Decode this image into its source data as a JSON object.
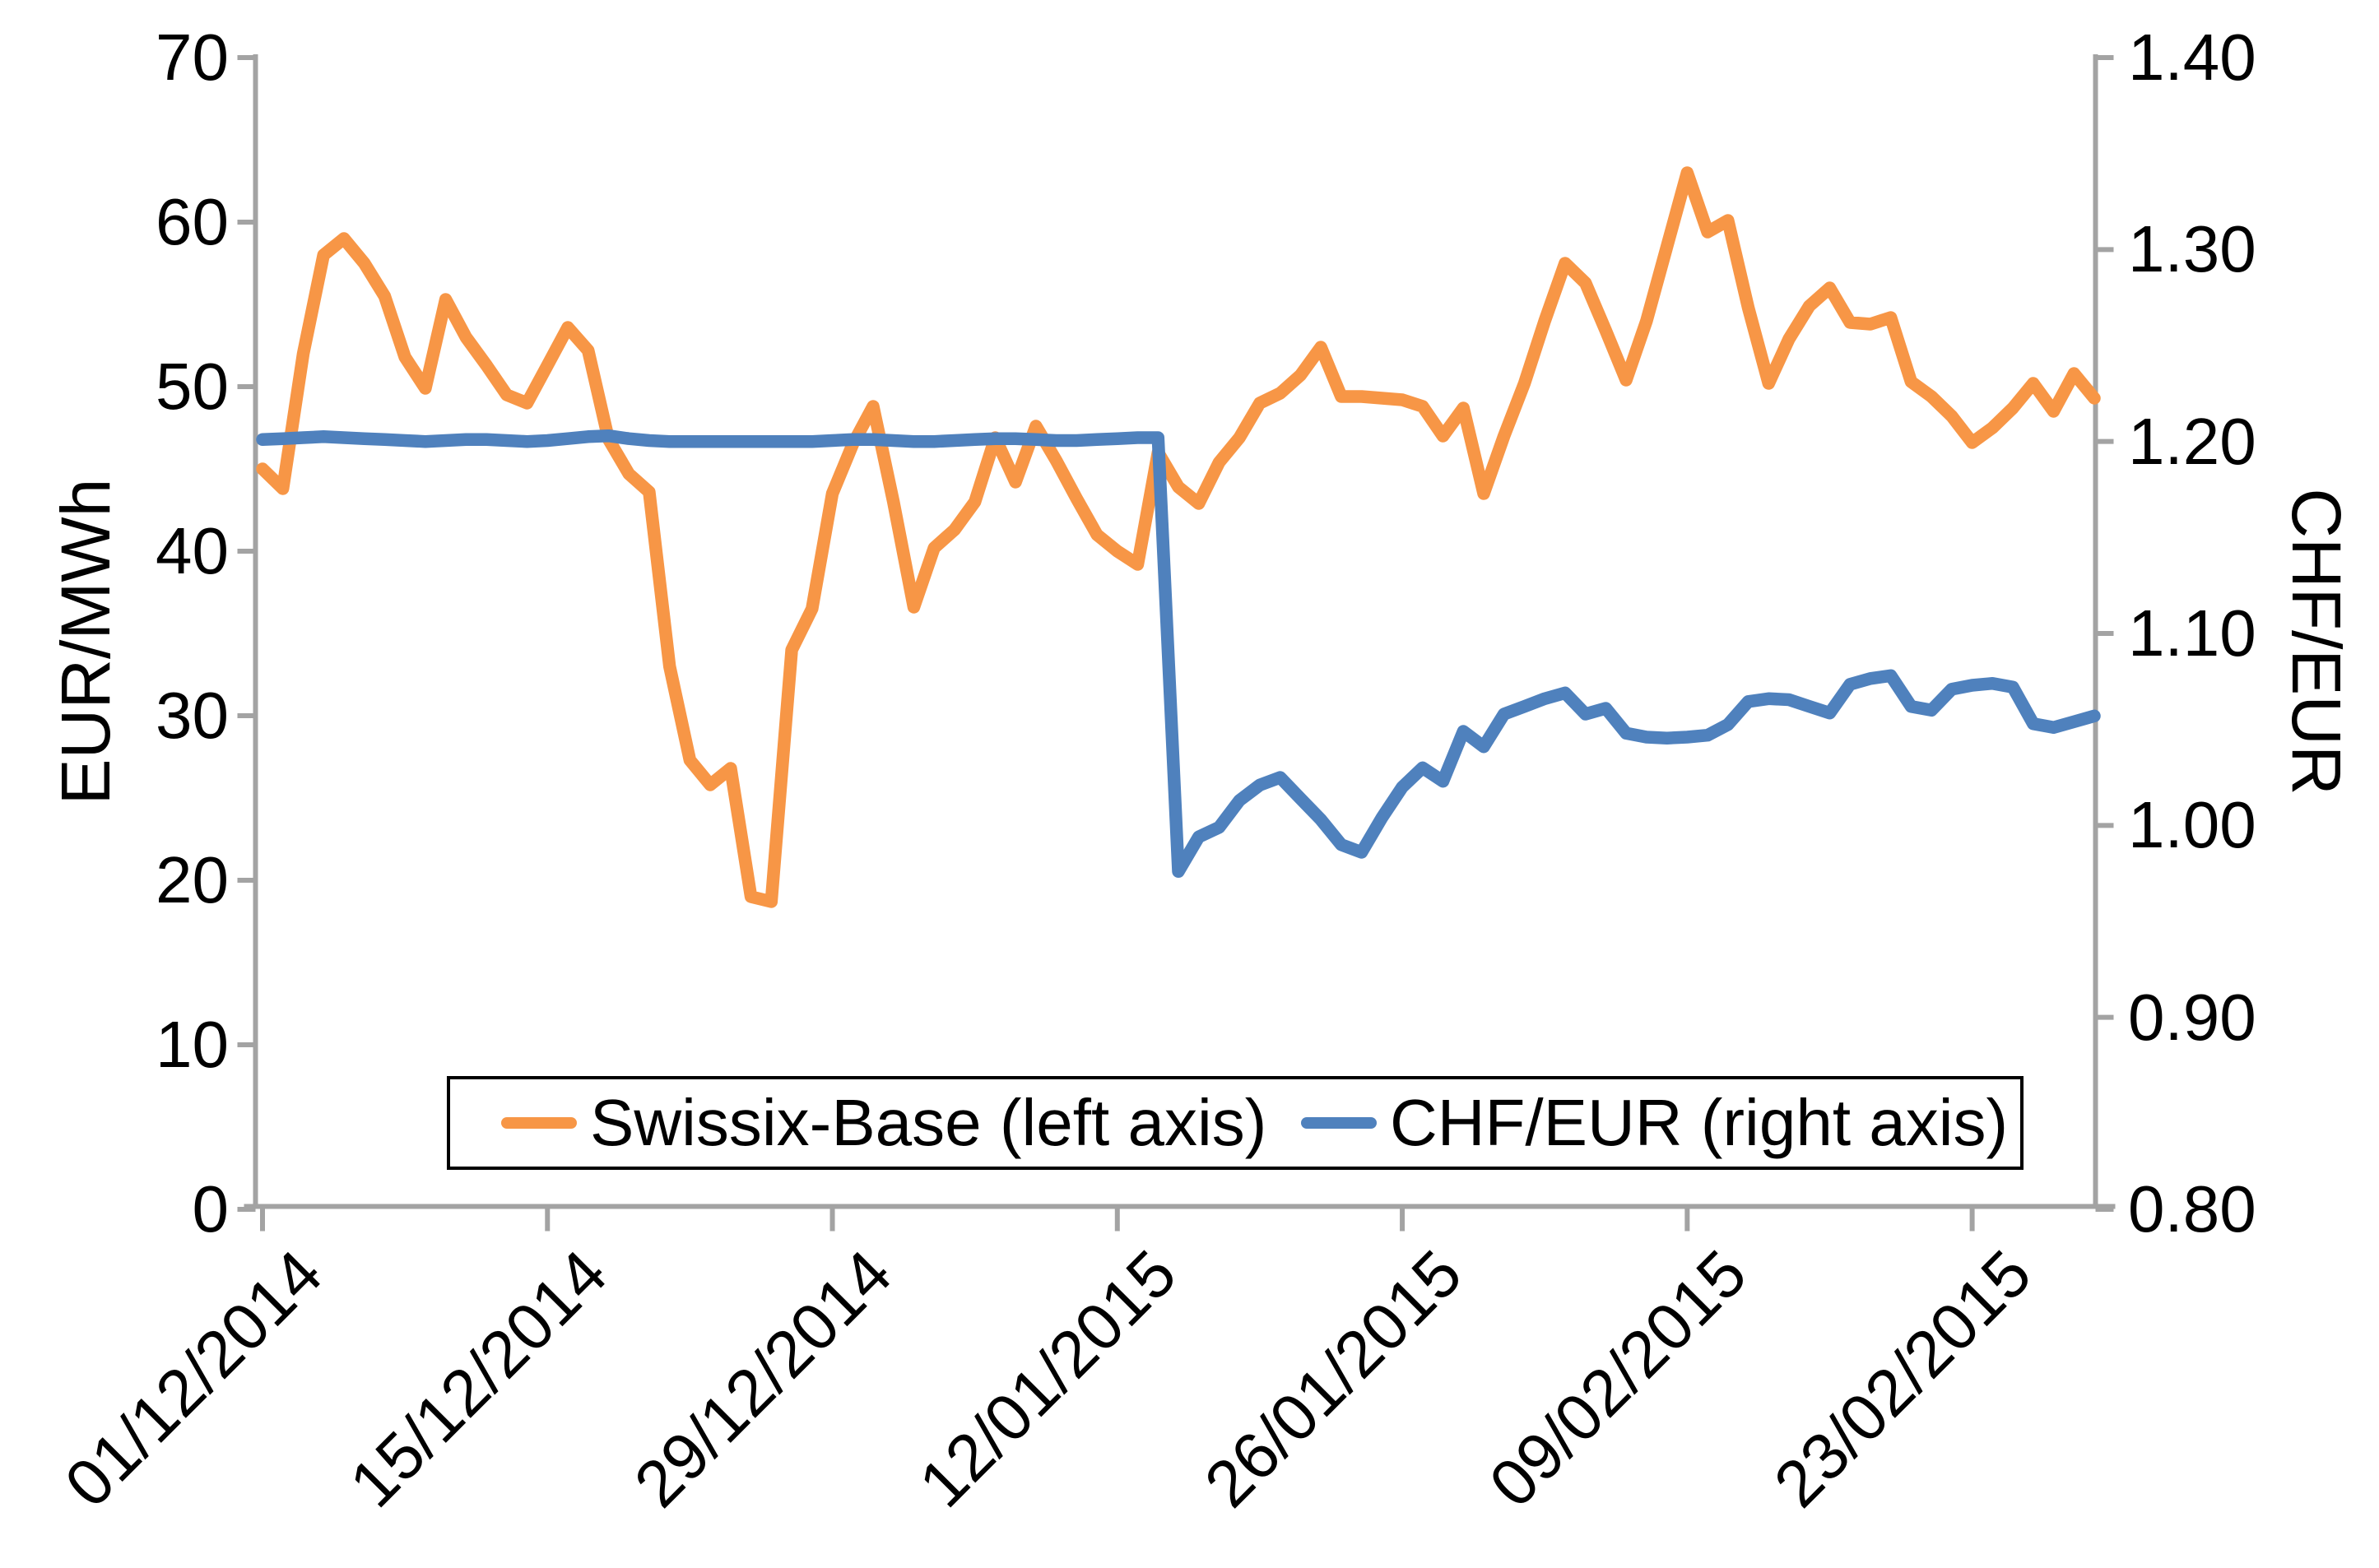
{
  "chart_data": {
    "type": "line",
    "title": "",
    "x_tick_labels": [
      "01/12/2014",
      "15/12/2014",
      "29/12/2014",
      "12/01/2015",
      "26/01/2015",
      "09/02/2015",
      "23/02/2015"
    ],
    "dates": [
      "01/12/2014",
      "02/12/2014",
      "03/12/2014",
      "04/12/2014",
      "05/12/2014",
      "06/12/2014",
      "07/12/2014",
      "08/12/2014",
      "09/12/2014",
      "10/12/2014",
      "11/12/2014",
      "12/12/2014",
      "13/12/2014",
      "14/12/2014",
      "15/12/2014",
      "16/12/2014",
      "17/12/2014",
      "18/12/2014",
      "19/12/2014",
      "20/12/2014",
      "21/12/2014",
      "22/12/2014",
      "23/12/2014",
      "24/12/2014",
      "25/12/2014",
      "26/12/2014",
      "27/12/2014",
      "28/12/2014",
      "29/12/2014",
      "30/12/2014",
      "31/12/2014",
      "01/01/2015",
      "02/01/2015",
      "03/01/2015",
      "04/01/2015",
      "05/01/2015",
      "06/01/2015",
      "07/01/2015",
      "08/01/2015",
      "09/01/2015",
      "10/01/2015",
      "11/01/2015",
      "12/01/2015",
      "13/01/2015",
      "14/01/2015",
      "15/01/2015",
      "16/01/2015",
      "17/01/2015",
      "18/01/2015",
      "19/01/2015",
      "20/01/2015",
      "21/01/2015",
      "22/01/2015",
      "23/01/2015",
      "24/01/2015",
      "25/01/2015",
      "26/01/2015",
      "27/01/2015",
      "28/01/2015",
      "29/01/2015",
      "30/01/2015",
      "31/01/2015",
      "01/02/2015",
      "02/02/2015",
      "03/02/2015",
      "04/02/2015",
      "05/02/2015",
      "06/02/2015",
      "07/02/2015",
      "08/02/2015",
      "09/02/2015",
      "10/02/2015",
      "11/02/2015",
      "12/02/2015",
      "13/02/2015",
      "14/02/2015",
      "15/02/2015",
      "16/02/2015",
      "17/02/2015",
      "18/02/2015",
      "19/02/2015",
      "20/02/2015",
      "21/02/2015",
      "22/02/2015",
      "23/02/2015",
      "24/02/2015",
      "25/02/2015",
      "26/02/2015",
      "27/02/2015",
      "28/02/2015",
      "01/03/2015"
    ],
    "series": [
      {
        "name": "Swissix-Base (left axis)",
        "axis": "left",
        "color": "#F79646",
        "values": [
          45.0,
          43.8,
          52.0,
          58.0,
          59.0,
          57.5,
          55.5,
          51.8,
          49.9,
          55.3,
          53.0,
          51.3,
          49.5,
          49.0,
          51.3,
          53.6,
          52.2,
          46.8,
          44.7,
          43.6,
          33.0,
          27.3,
          25.8,
          26.8,
          19.0,
          18.7,
          34.0,
          36.5,
          43.5,
          46.5,
          48.8,
          43.0,
          36.6,
          40.2,
          41.3,
          43.0,
          46.9,
          44.2,
          47.6,
          45.5,
          43.2,
          41.0,
          40.0,
          39.2,
          46.0,
          43.9,
          42.9,
          45.4,
          46.9,
          49.0,
          49.6,
          50.7,
          52.4,
          49.4,
          49.4,
          49.3,
          49.2,
          48.8,
          47.0,
          48.7,
          43.5,
          47.0,
          50.2,
          54.0,
          57.5,
          56.3,
          53.4,
          50.4,
          54.0,
          58.5,
          63.0,
          59.4,
          60.1,
          54.8,
          50.2,
          52.9,
          54.9,
          56.0,
          53.9,
          53.8,
          54.2,
          50.3,
          49.4,
          48.2,
          46.6,
          47.5,
          48.7,
          50.2,
          48.5,
          50.8,
          49.3
        ]
      },
      {
        "name": "CHF/EUR (right axis)",
        "axis": "right",
        "color": "#4F81BD",
        "values": [
          1.201,
          1.2015,
          1.202,
          1.2025,
          1.202,
          1.2015,
          1.201,
          1.2005,
          1.2,
          1.2005,
          1.201,
          1.201,
          1.2005,
          1.2,
          1.2005,
          1.2015,
          1.2025,
          1.203,
          1.2015,
          1.2005,
          1.2,
          1.2,
          1.2,
          1.2,
          1.2,
          1.2,
          1.2,
          1.2,
          1.2005,
          1.201,
          1.201,
          1.2005,
          1.2,
          1.2,
          1.2005,
          1.201,
          1.2015,
          1.2015,
          1.201,
          1.2005,
          1.2005,
          1.201,
          1.2015,
          1.202,
          1.202,
          0.976,
          0.994,
          0.999,
          1.013,
          1.021,
          1.025,
          1.014,
          1.003,
          0.99,
          0.986,
          1.004,
          1.02,
          1.03,
          1.023,
          1.049,
          1.041,
          1.058,
          1.062,
          1.066,
          1.069,
          1.058,
          1.061,
          1.048,
          1.046,
          1.0455,
          1.046,
          1.047,
          1.0525,
          1.0645,
          1.066,
          1.0655,
          1.062,
          1.0585,
          1.0735,
          1.0765,
          1.078,
          1.062,
          1.06,
          1.071,
          1.073,
          1.074,
          1.072,
          1.053,
          1.051,
          1.054,
          1.057
        ]
      }
    ],
    "left_axis": {
      "label": "EUR/MWh",
      "min": 0,
      "max": 70,
      "step": 10,
      "tick_labels": [
        "0",
        "10",
        "20",
        "30",
        "40",
        "50",
        "60",
        "70"
      ]
    },
    "right_axis": {
      "label": "CHF/EUR",
      "min": 0.8,
      "max": 1.4,
      "step": 0.1,
      "tick_labels": [
        "0.80",
        "0.90",
        "1.00",
        "1.10",
        "1.20",
        "1.30",
        "1.40"
      ]
    },
    "legend": {
      "entries": [
        "Swissix-Base (left axis)",
        "CHF/EUR (right axis)"
      ],
      "position": "bottom-center-box"
    },
    "grid": "off",
    "axis_color": "#A3A3A3",
    "text_color": "#000000"
  }
}
